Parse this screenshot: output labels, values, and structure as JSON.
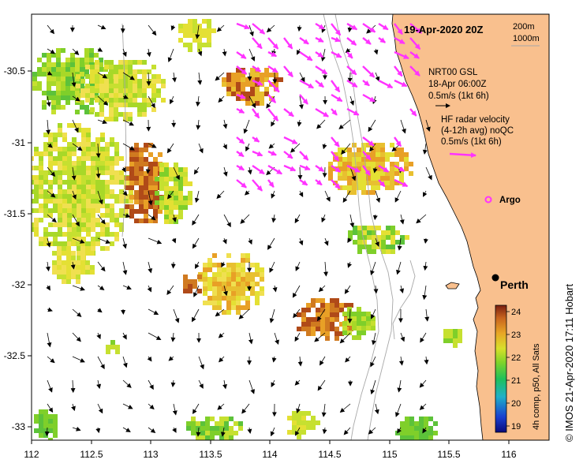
{
  "date_label": "19-Apr-2020 20Z",
  "depth_legend": [
    "200m",
    "1000m"
  ],
  "x_ticks": [
    "112",
    "112.5",
    "113",
    "113.5",
    "114",
    "114.5",
    "115",
    "115.5",
    "116"
  ],
  "y_ticks": [
    "-30.5",
    "-31",
    "-31.5",
    "-32",
    "-32.5",
    "-33"
  ],
  "nrt": {
    "line1": "NRT00 GSL",
    "line2": "18-Apr 06:00Z",
    "line3": "0.5m/s (1kt 6h)"
  },
  "hf": {
    "line1": "HF radar velocity",
    "line2": "(4-12h avg) noQC",
    "line3": "0.5m/s (1kt 6h)"
  },
  "argo_label": "Argo",
  "city_label": "Perth",
  "colorbar": {
    "ticks": [
      "24",
      "23",
      "22",
      "21",
      "20",
      "19"
    ],
    "title": "4h comp, p50, All Sats"
  },
  "credit": "© IMOS 21-Apr-2020 17:11 Hobart",
  "colors": {
    "land": "#f9c08e",
    "radar_arrow": "#ff33ff",
    "argo": "#ff33ff",
    "coast": "#000000",
    "isobath": "#aaaaaa"
  },
  "map_extent": {
    "lon": [
      112,
      116.3
    ],
    "lat": [
      -33.1,
      -30.05
    ]
  },
  "perth": {
    "lon": 115.86,
    "lat": -31.95
  },
  "argo_pos": {
    "lon": 115.77,
    "lat": -31.54
  }
}
